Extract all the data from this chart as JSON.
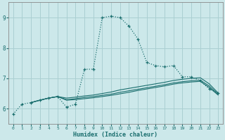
{
  "xlabel": "Humidex (Indice chaleur)",
  "bg_color": "#cce8ea",
  "grid_color": "#aacfd2",
  "line_color": "#1a6e6e",
  "xlim": [
    -0.5,
    23.5
  ],
  "ylim": [
    5.5,
    9.5
  ],
  "xticks": [
    0,
    1,
    2,
    3,
    4,
    5,
    6,
    7,
    8,
    9,
    10,
    11,
    12,
    13,
    14,
    15,
    16,
    17,
    18,
    19,
    20,
    21,
    22,
    23
  ],
  "yticks": [
    6,
    7,
    8,
    9
  ],
  "curve1_x": [
    0,
    1,
    2,
    3,
    4,
    5,
    6,
    7,
    8,
    9,
    10,
    11,
    12,
    13,
    14,
    15,
    16,
    17,
    18,
    19,
    20,
    21,
    22,
    23
  ],
  "curve1_y": [
    5.82,
    6.15,
    6.2,
    6.28,
    6.35,
    6.4,
    6.05,
    6.15,
    7.3,
    7.3,
    9.0,
    9.05,
    9.0,
    8.72,
    8.3,
    7.52,
    7.42,
    7.38,
    7.42,
    7.05,
    7.05,
    6.92,
    6.65,
    6.52
  ],
  "curve2_x": [
    2,
    3,
    4,
    5,
    6,
    7,
    8,
    9,
    10,
    11,
    12,
    13,
    14,
    15,
    16,
    17,
    18,
    19,
    20,
    21,
    22,
    23
  ],
  "curve2_y": [
    6.2,
    6.28,
    6.35,
    6.4,
    6.35,
    6.38,
    6.42,
    6.45,
    6.5,
    6.55,
    6.62,
    6.67,
    6.72,
    6.77,
    6.82,
    6.87,
    6.93,
    6.97,
    7.0,
    7.02,
    6.82,
    6.52
  ],
  "curve3_x": [
    2,
    3,
    4,
    5,
    6,
    7,
    8,
    9,
    10,
    11,
    12,
    13,
    14,
    15,
    16,
    17,
    18,
    19,
    20,
    21,
    22,
    23
  ],
  "curve3_y": [
    6.2,
    6.28,
    6.35,
    6.4,
    6.3,
    6.33,
    6.37,
    6.4,
    6.44,
    6.48,
    6.54,
    6.59,
    6.64,
    6.69,
    6.74,
    6.79,
    6.85,
    6.89,
    6.92,
    6.94,
    6.75,
    6.48
  ],
  "curve4_x": [
    2,
    3,
    4,
    5,
    6,
    7,
    8,
    9,
    10,
    11,
    12,
    13,
    14,
    15,
    16,
    17,
    18,
    19,
    20,
    21,
    22,
    23
  ],
  "curve4_y": [
    6.2,
    6.28,
    6.35,
    6.4,
    6.28,
    6.3,
    6.33,
    6.36,
    6.4,
    6.44,
    6.49,
    6.54,
    6.6,
    6.65,
    6.7,
    6.75,
    6.81,
    6.85,
    6.88,
    6.9,
    6.7,
    6.45
  ]
}
